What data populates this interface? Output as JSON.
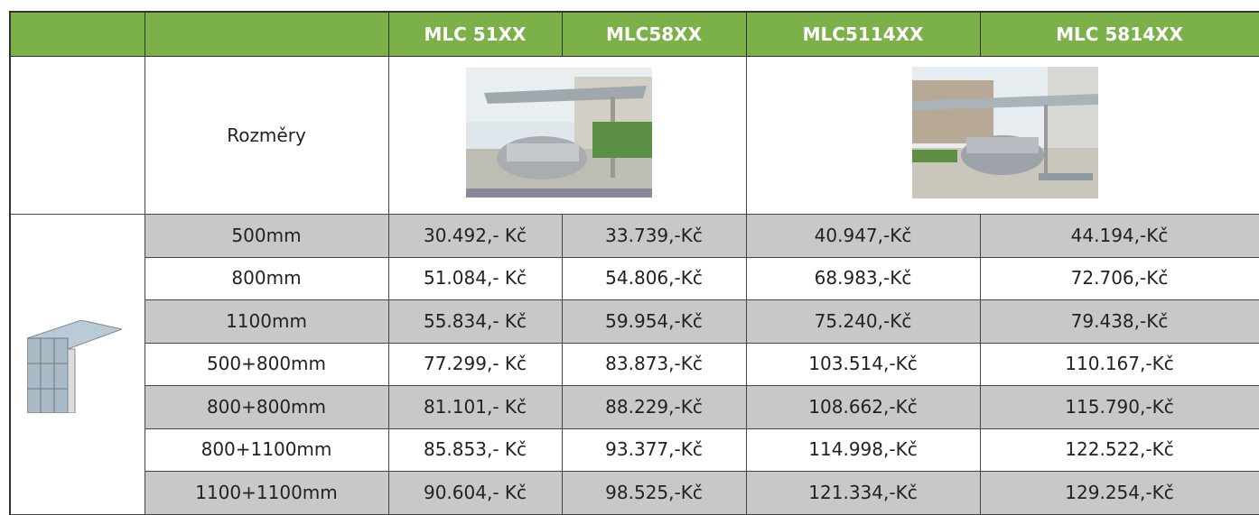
{
  "table": {
    "columns": [
      "MLC 51XX",
      "MLC58XX",
      "MLC5114XX",
      "MLC 5814XX"
    ],
    "dimension_label": "Rozměry",
    "rows": [
      {
        "size": "500mm",
        "prices": [
          "30.492,- Kč",
          "33.739,-Kč",
          "40.947,-Kč",
          "44.194,-Kč"
        ]
      },
      {
        "size": "800mm",
        "prices": [
          "51.084,- Kč",
          "54.806,-Kč",
          "68.983,-Kč",
          "72.706,-Kč"
        ]
      },
      {
        "size": "1100mm",
        "prices": [
          "55.834,- Kč",
          "59.954,-Kč",
          "75.240,-Kč",
          "79.438,-Kč"
        ]
      },
      {
        "size": "500+800mm",
        "prices": [
          "77.299,- Kč",
          "83.873,-Kč",
          "103.514,-Kč",
          "110.167,-Kč"
        ]
      },
      {
        "size": "800+800mm",
        "prices": [
          "81.101,- Kč",
          "88.229,-Kč",
          "108.662,-Kč",
          "115.790,-Kč"
        ]
      },
      {
        "size": "800+1100mm",
        "prices": [
          "85.853,- Kč",
          "93.377,-Kč",
          "114.998,-Kč",
          "122.522,-Kč"
        ]
      },
      {
        "size": "1100+1100mm",
        "prices": [
          "90.604,- Kč",
          "98.525,-Kč",
          "121.334,-Kč",
          "129.254,-Kč"
        ]
      }
    ]
  }
}
